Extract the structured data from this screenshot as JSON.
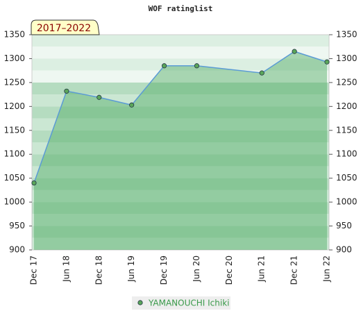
{
  "chart_data": {
    "type": "area",
    "title": "WOF ratinglist",
    "subtitle": "2017–2022",
    "categories": [
      "Dec 17",
      "Jun 18",
      "Dec 18",
      "Jun 19",
      "Dec 19",
      "Jun 20",
      "Dec 20",
      "Jun 21",
      "Dec 21",
      "Jun 22"
    ],
    "series": [
      {
        "name": "YAMANOUCHI Ichiki",
        "color": "#5b9bd5",
        "marker_color": "#5aa55a",
        "x": [
          "Dec 17",
          "Jun 18",
          "Dec 18",
          "Jun 19",
          "Dec 19",
          "Jun 20",
          "Jun 21",
          "Dec 21",
          "Jun 22"
        ],
        "values": [
          1040,
          1232,
          1219,
          1203,
          1285,
          1285,
          1270,
          1315,
          1293
        ]
      }
    ],
    "ylim": [
      900,
      1350
    ],
    "yticks": [
      900,
      950,
      1000,
      1050,
      1100,
      1150,
      1200,
      1250,
      1300,
      1350
    ],
    "grid": true,
    "second_axis": true
  }
}
